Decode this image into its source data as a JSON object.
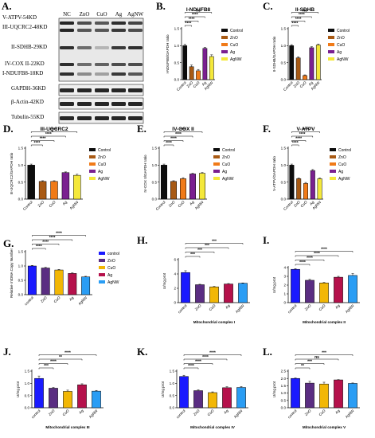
{
  "figure_labels": [
    "A.",
    "B.",
    "C.",
    "D.",
    "E.",
    "F.",
    "G.",
    "H.",
    "I.",
    "J.",
    "K.",
    "L."
  ],
  "western_blot": {
    "lanes": [
      "NC",
      "ZnO",
      "CuO",
      "Ag",
      "AgNW"
    ],
    "bands": [
      "V-ATPV-54KD",
      "III-UQCRC2-48KD",
      "II-SDHB-29KD",
      "IV-COX II-22KD",
      "I-NDUFB8-18KD",
      "GAPDH-36KD",
      "β-Actin-42KD",
      "Tubulin-55KD"
    ]
  },
  "colors": {
    "wb": [
      "#0d0d0d",
      "#a85a14",
      "#f07a18",
      "#7a2090",
      "#f4e83a"
    ],
    "activity": [
      "#1a1aff",
      "#5a2d82",
      "#f2b705",
      "#b5114b",
      "#2a9df4"
    ]
  },
  "chart_data": [
    {
      "id": "B",
      "type": "bar",
      "title": "I-NDUFB8",
      "ylabel": "I-NDUFB8/GAPDH ratio",
      "categories": [
        "Control",
        "ZnO",
        "CuO",
        "Ag",
        "AgNW"
      ],
      "values": [
        1.0,
        0.38,
        0.26,
        0.92,
        0.68
      ],
      "errors": [
        0.04,
        0.05,
        0.04,
        0.03,
        0.05
      ],
      "ylim": [
        0,
        1.5
      ],
      "yticks": [
        "0.0",
        "0.5",
        "1.0",
        "1.5"
      ],
      "legend": [
        "Control",
        "ZnO",
        "CuO",
        "Ag",
        "AgNW"
      ],
      "sig": [
        {
          "a": 0,
          "b": 4,
          "label": "ns"
        },
        {
          "a": 0,
          "b": 3,
          "label": "****"
        },
        {
          "a": 0,
          "b": 2,
          "label": "****"
        },
        {
          "a": 0,
          "b": 1,
          "label": "****"
        }
      ]
    },
    {
      "id": "C",
      "type": "bar",
      "title": "II-SDHB",
      "ylabel": "II-SDHB/GAPDH ratio",
      "categories": [
        "Control",
        "ZnO",
        "CuO",
        "Ag",
        "AgNW"
      ],
      "values": [
        1.0,
        0.64,
        0.12,
        0.94,
        1.02
      ],
      "errors": [
        0.03,
        0.03,
        0.02,
        0.03,
        0.03
      ],
      "ylim": [
        0,
        1.5
      ],
      "yticks": [
        "0.0",
        "0.5",
        "1.0",
        "1.5"
      ],
      "legend": [
        "Control",
        "ZnO",
        "CuO",
        "Ag",
        "AgNW"
      ],
      "sig": [
        {
          "a": 0,
          "b": 4,
          "label": "ns"
        },
        {
          "a": 0,
          "b": 3,
          "label": "****"
        },
        {
          "a": 0,
          "b": 2,
          "label": "****"
        },
        {
          "a": 0,
          "b": 1,
          "label": "****"
        }
      ]
    },
    {
      "id": "D",
      "type": "bar",
      "title": "III-UQCRC2",
      "ylabel": "III-UQCRC2/GAPDH ratio",
      "categories": [
        "Control",
        "ZnO",
        "CuO",
        "Ag",
        "AgNW"
      ],
      "values": [
        1.0,
        0.52,
        0.52,
        0.78,
        0.7
      ],
      "errors": [
        0.03,
        0.02,
        0.02,
        0.02,
        0.03
      ],
      "ylim": [
        0,
        1.5
      ],
      "yticks": [
        "0.0",
        "0.5",
        "1.0",
        "1.5"
      ],
      "legend": [
        "Control",
        "ZnO",
        "CuO",
        "Ag",
        "AgNW"
      ],
      "sig": [
        {
          "a": 0,
          "b": 4,
          "label": "****"
        },
        {
          "a": 0,
          "b": 3,
          "label": "****"
        },
        {
          "a": 0,
          "b": 2,
          "label": "****"
        },
        {
          "a": 0,
          "b": 1,
          "label": "****"
        }
      ]
    },
    {
      "id": "E",
      "type": "bar",
      "title": "IV-COX II",
      "ylabel": "IV-COX II/GAPDH ratio",
      "categories": [
        "Control",
        "ZnO",
        "CuO",
        "Ag",
        "AgNW"
      ],
      "values": [
        1.0,
        0.52,
        0.6,
        0.74,
        0.76
      ],
      "errors": [
        0.03,
        0.02,
        0.03,
        0.02,
        0.02
      ],
      "ylim": [
        0,
        1.5
      ],
      "yticks": [
        "0.0",
        "0.5",
        "1.0",
        "1.5"
      ],
      "legend": [
        "Control",
        "ZnO",
        "CuO",
        "Ag",
        "AgNW"
      ],
      "sig": [
        {
          "a": 0,
          "b": 4,
          "label": "****"
        },
        {
          "a": 0,
          "b": 3,
          "label": "****"
        },
        {
          "a": 0,
          "b": 2,
          "label": "****"
        },
        {
          "a": 0,
          "b": 1,
          "label": "****"
        }
      ]
    },
    {
      "id": "F",
      "type": "bar",
      "title": "V-ATPV",
      "ylabel": "V-ATPV/GAPDH ratio",
      "categories": [
        "Control",
        "ZnO",
        "CuO",
        "Ag",
        "AgNW"
      ],
      "values": [
        1.0,
        0.6,
        0.46,
        0.84,
        0.6
      ],
      "errors": [
        0.03,
        0.02,
        0.03,
        0.03,
        0.02
      ],
      "ylim": [
        0,
        1.5
      ],
      "yticks": [
        "0.0",
        "0.5",
        "1.0",
        "1.5"
      ],
      "legend": [
        "Control",
        "ZnO",
        "CuO",
        "Ag",
        "AgNW"
      ],
      "sig": [
        {
          "a": 0,
          "b": 4,
          "label": "****"
        },
        {
          "a": 0,
          "b": 3,
          "label": "****"
        },
        {
          "a": 0,
          "b": 2,
          "label": "****"
        },
        {
          "a": 0,
          "b": 1,
          "label": "****"
        }
      ]
    },
    {
      "id": "G",
      "type": "bar",
      "title": "",
      "ylabel": "Relative mtDNA Copy Number",
      "categories": [
        "control",
        "ZnO",
        "CuO",
        "Ag",
        "AgNW"
      ],
      "values": [
        1.0,
        0.93,
        0.86,
        0.74,
        0.62
      ],
      "errors": [
        0.02,
        0.02,
        0.02,
        0.02,
        0.02
      ],
      "ylim": [
        0,
        1.5
      ],
      "yticks": [
        "0.0",
        "0.5",
        "1.0",
        "1.5"
      ],
      "legend": [
        "control",
        "ZnO",
        "CuO",
        "Ag",
        "AgNW"
      ],
      "sig": [
        {
          "a": 0,
          "b": 4,
          "label": "****"
        },
        {
          "a": 0,
          "b": 3,
          "label": "****"
        },
        {
          "a": 0,
          "b": 2,
          "label": "****"
        },
        {
          "a": 0,
          "b": 1,
          "label": "****"
        }
      ]
    },
    {
      "id": "H",
      "type": "bar",
      "title": "",
      "xlabel": "Mitochondrial complex I",
      "ylabel": "U/mg prot",
      "categories": [
        "control",
        "ZnO",
        "CuO",
        "Ag",
        "AgNW"
      ],
      "values": [
        4.2,
        2.5,
        2.2,
        2.6,
        2.7
      ],
      "errors": [
        0.25,
        0.06,
        0.06,
        0.06,
        0.05
      ],
      "ylim": [
        0,
        6
      ],
      "yticks": [
        "0",
        "2",
        "4",
        "6"
      ],
      "sig": [
        {
          "a": 0,
          "b": 4,
          "label": "***"
        },
        {
          "a": 0,
          "b": 3,
          "label": "***"
        },
        {
          "a": 0,
          "b": 2,
          "label": "***"
        },
        {
          "a": 0,
          "b": 1,
          "label": "***"
        }
      ]
    },
    {
      "id": "I",
      "type": "bar",
      "title": "",
      "xlabel": "Mitochondrial complex II",
      "ylabel": "U/mg prot",
      "categories": [
        "control",
        "ZnO",
        "CuO",
        "Ag",
        "AgNW"
      ],
      "values": [
        3.8,
        2.55,
        2.25,
        2.9,
        3.1
      ],
      "errors": [
        0.08,
        0.1,
        0.05,
        0.1,
        0.22
      ],
      "ylim": [
        0,
        4
      ],
      "yticks": [
        "0",
        "1",
        "2",
        "3",
        "4"
      ],
      "sig": [
        {
          "a": 0,
          "b": 4,
          "label": "****"
        },
        {
          "a": 0,
          "b": 3,
          "label": "****"
        },
        {
          "a": 0,
          "b": 2,
          "label": "****"
        },
        {
          "a": 0,
          "b": 1,
          "label": "****"
        }
      ]
    },
    {
      "id": "J",
      "type": "bar",
      "title": "",
      "xlabel": "Mitochondrial complex III",
      "ylabel": "U/mg prot",
      "categories": [
        "control",
        "ZnO",
        "CuO",
        "Ag",
        "AgNW"
      ],
      "values": [
        1.2,
        0.8,
        0.67,
        0.94,
        0.68
      ],
      "errors": [
        0.1,
        0.03,
        0.05,
        0.04,
        0.03
      ],
      "ylim": [
        0,
        1.5
      ],
      "yticks": [
        "0.0",
        "0.5",
        "1.0",
        "1.5"
      ],
      "sig": [
        {
          "a": 0,
          "b": 4,
          "label": "****"
        },
        {
          "a": 0,
          "b": 3,
          "label": "**"
        },
        {
          "a": 0,
          "b": 2,
          "label": "****"
        },
        {
          "a": 0,
          "b": 1,
          "label": "***"
        }
      ]
    },
    {
      "id": "K",
      "type": "bar",
      "title": "",
      "xlabel": "Mitochondrial complex IV",
      "ylabel": "U/mg prot",
      "categories": [
        "control",
        "ZnO",
        "CuO",
        "Ag",
        "AgNW"
      ],
      "values": [
        1.28,
        0.7,
        0.62,
        0.82,
        0.83
      ],
      "errors": [
        0.05,
        0.03,
        0.03,
        0.04,
        0.04
      ],
      "ylim": [
        0,
        1.5
      ],
      "yticks": [
        "0.0",
        "0.5",
        "1.0",
        "1.5"
      ],
      "sig": [
        {
          "a": 0,
          "b": 4,
          "label": "****"
        },
        {
          "a": 0,
          "b": 3,
          "label": "****"
        },
        {
          "a": 0,
          "b": 2,
          "label": "****"
        },
        {
          "a": 0,
          "b": 1,
          "label": "****"
        }
      ]
    },
    {
      "id": "L",
      "type": "bar",
      "title": "",
      "xlabel": "Mitochondrial complex V",
      "ylabel": "U/mg prot",
      "categories": [
        "control",
        "ZnO",
        "CuO",
        "Ag",
        "AgNW"
      ],
      "values": [
        2.0,
        1.68,
        1.62,
        1.9,
        1.66
      ],
      "errors": [
        0.03,
        0.12,
        0.12,
        0.02,
        0.03
      ],
      "ylim": [
        0,
        2.5
      ],
      "yticks": [
        "0.0",
        "0.5",
        "1.0",
        "1.5",
        "2.0",
        "2.5"
      ],
      "sig": [
        {
          "a": 0,
          "b": 4,
          "label": "***"
        },
        {
          "a": 0,
          "b": 3,
          "label": "ns"
        },
        {
          "a": 0,
          "b": 2,
          "label": "***"
        },
        {
          "a": 0,
          "b": 1,
          "label": "**"
        }
      ]
    }
  ]
}
